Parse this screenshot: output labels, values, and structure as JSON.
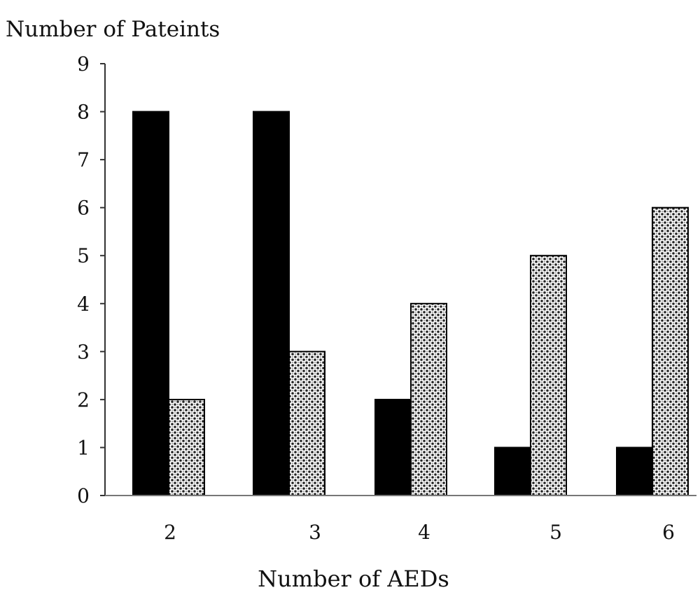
{
  "chart_data": {
    "type": "bar",
    "title": "",
    "xlabel": "Number of AEDs",
    "ylabel": "Number of Pateints",
    "categories": [
      "2",
      "3",
      "4",
      "5",
      "6"
    ],
    "series": [
      {
        "values": [
          8,
          8,
          2,
          1,
          1
        ],
        "color": "#000000",
        "pattern": "solid"
      },
      {
        "values": [
          2,
          3,
          4,
          5,
          6
        ],
        "color": "#000000",
        "pattern": "dotted-checker"
      }
    ],
    "ylim": [
      0,
      9
    ],
    "yticks": [
      "0",
      "1",
      "2",
      "3",
      "4",
      "5",
      "6",
      "7",
      "8",
      "9"
    ],
    "grid": false,
    "legend": "none"
  }
}
